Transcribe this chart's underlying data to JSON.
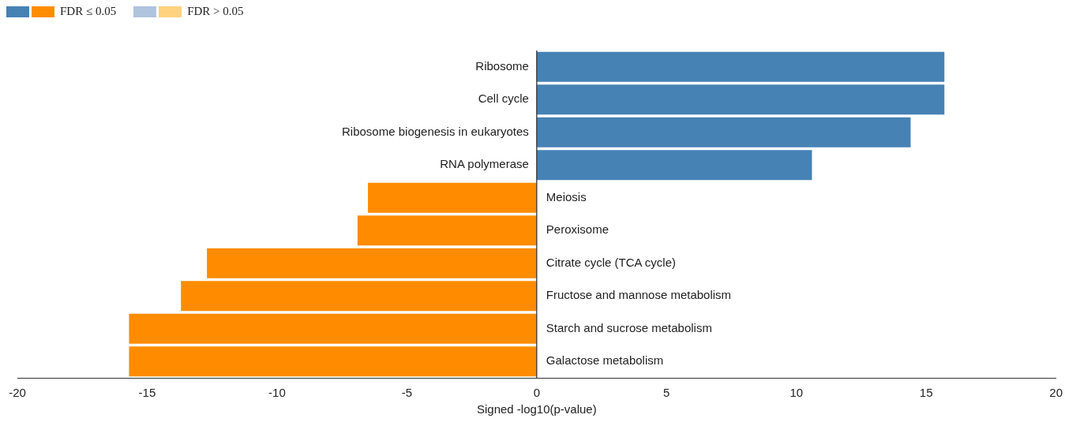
{
  "chart_data": {
    "type": "bar",
    "orientation": "horizontal",
    "xlabel": "Signed -log10(p-value)",
    "categories": [
      "Ribosome",
      "Cell cycle",
      "Ribosome biogenesis in eukaryotes",
      "RNA polymerase",
      "Meiosis",
      "Peroxisome",
      "Citrate cycle (TCA cycle)",
      "Fructose and mannose metabolism",
      "Starch and sucrose metabolism",
      "Galactose metabolism"
    ],
    "series": [
      {
        "name": "FDR ≤ 0.05",
        "colors": [
          "#4682b4",
          "#4682b4",
          "#4682b4",
          "#4682b4",
          "#ff8c00",
          "#ff8c00",
          "#ff8c00",
          "#ff8c00",
          "#ff8c00",
          "#ff8c00"
        ],
        "values": [
          15.7,
          15.7,
          14.4,
          10.6,
          -6.5,
          -6.9,
          -12.7,
          -13.7,
          -15.7,
          -15.7
        ]
      },
      {
        "name": "FDR > 0.05",
        "colors": [
          "#b0c4de",
          "#b0c4de",
          "#b0c4de",
          "#b0c4de",
          "#ffd27f",
          "#ffd27f",
          "#ffd27f",
          "#ffd27f",
          "#ffd27f",
          "#ffd27f"
        ],
        "values": [
          null,
          null,
          null,
          null,
          null,
          null,
          null,
          null,
          null,
          null
        ]
      }
    ],
    "xlim": [
      -20,
      20
    ],
    "xticks": [
      -20,
      -15,
      -10,
      -5,
      0,
      5,
      10,
      15,
      20
    ],
    "grid": false,
    "legend": "top left"
  }
}
